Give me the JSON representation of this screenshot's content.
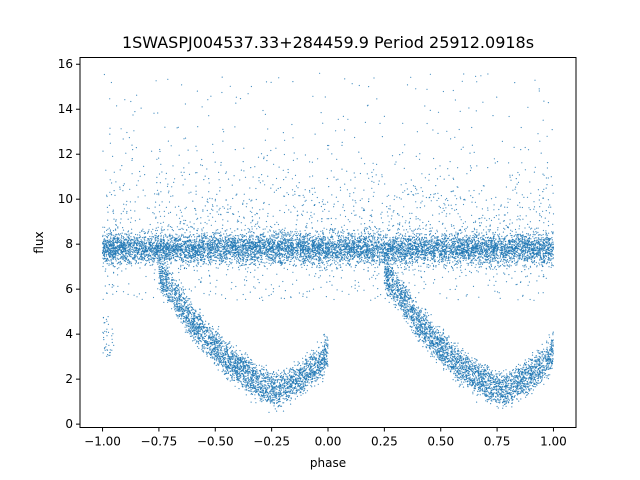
{
  "chart_data": {
    "type": "scatter",
    "title": "1SWASPJ004537.33+284459.9 Period 25912.0918s",
    "xlabel": "phase",
    "ylabel": "flux",
    "xlim": [
      -1.1,
      1.1
    ],
    "ylim": [
      -0.15,
      16.3
    ],
    "xticks": [
      -1.0,
      -0.75,
      -0.5,
      -0.25,
      0.0,
      0.25,
      0.5,
      0.75,
      1.0
    ],
    "xtick_labels": [
      "−1.00",
      "−0.75",
      "−0.50",
      "−0.25",
      "0.00",
      "0.25",
      "0.50",
      "0.75",
      "1.00"
    ],
    "yticks": [
      0,
      2,
      4,
      6,
      8,
      10,
      12,
      14,
      16
    ],
    "ytick_labels": [
      "0",
      "2",
      "4",
      "6",
      "8",
      "10",
      "12",
      "14",
      "16"
    ],
    "grid": false,
    "point_color": "#1f77b4",
    "series": [
      {
        "description_points": [
          {
            "x": -1.0,
            "y": 7.8
          },
          {
            "x": -0.75,
            "y": 7.8
          },
          {
            "x": -0.5,
            "y": 7.8
          },
          {
            "x": -0.25,
            "y": 7.8
          },
          {
            "x": 0.0,
            "y": 7.8
          },
          {
            "x": 0.25,
            "y": 7.8
          },
          {
            "x": 0.5,
            "y": 7.8
          },
          {
            "x": 0.75,
            "y": 7.8
          },
          {
            "x": 1.0,
            "y": 7.8
          }
        ],
        "eclipse_points": [
          {
            "x": -0.75,
            "y": 6.5
          },
          {
            "x": -0.6,
            "y": 4.2
          },
          {
            "x": -0.45,
            "y": 2.6
          },
          {
            "x": -0.32,
            "y": 1.6
          },
          {
            "x": -0.22,
            "y": 1.2
          },
          {
            "x": -0.12,
            "y": 1.7
          },
          {
            "x": -0.03,
            "y": 2.5
          },
          {
            "x": 0.0,
            "y": 3.0
          },
          {
            "x": 0.25,
            "y": 6.5
          },
          {
            "x": 0.4,
            "y": 4.2
          },
          {
            "x": 0.55,
            "y": 2.6
          },
          {
            "x": 0.68,
            "y": 1.6
          },
          {
            "x": 0.78,
            "y": 1.2
          },
          {
            "x": 0.88,
            "y": 1.7
          },
          {
            "x": 0.97,
            "y": 2.5
          },
          {
            "x": 1.0,
            "y": 3.0
          }
        ]
      }
    ]
  }
}
